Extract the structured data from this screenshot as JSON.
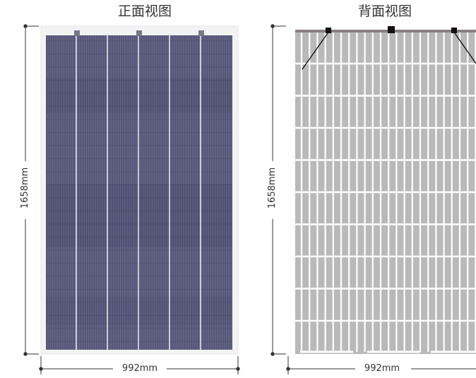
{
  "front_view": {
    "title": "正面视图",
    "height_label": "1658mm",
    "width_label": "992mm"
  },
  "back_view": {
    "title": "背面视图",
    "height_label": "1658mm",
    "width_label": "992mm"
  },
  "colors": {
    "front_cell": "#57577a",
    "front_frame": "#eeeeee",
    "back_sheet": "#b9b9b9",
    "back_grid": "#ffffff",
    "top_bar": "#8a7f86",
    "dimension_line": "#333333"
  }
}
